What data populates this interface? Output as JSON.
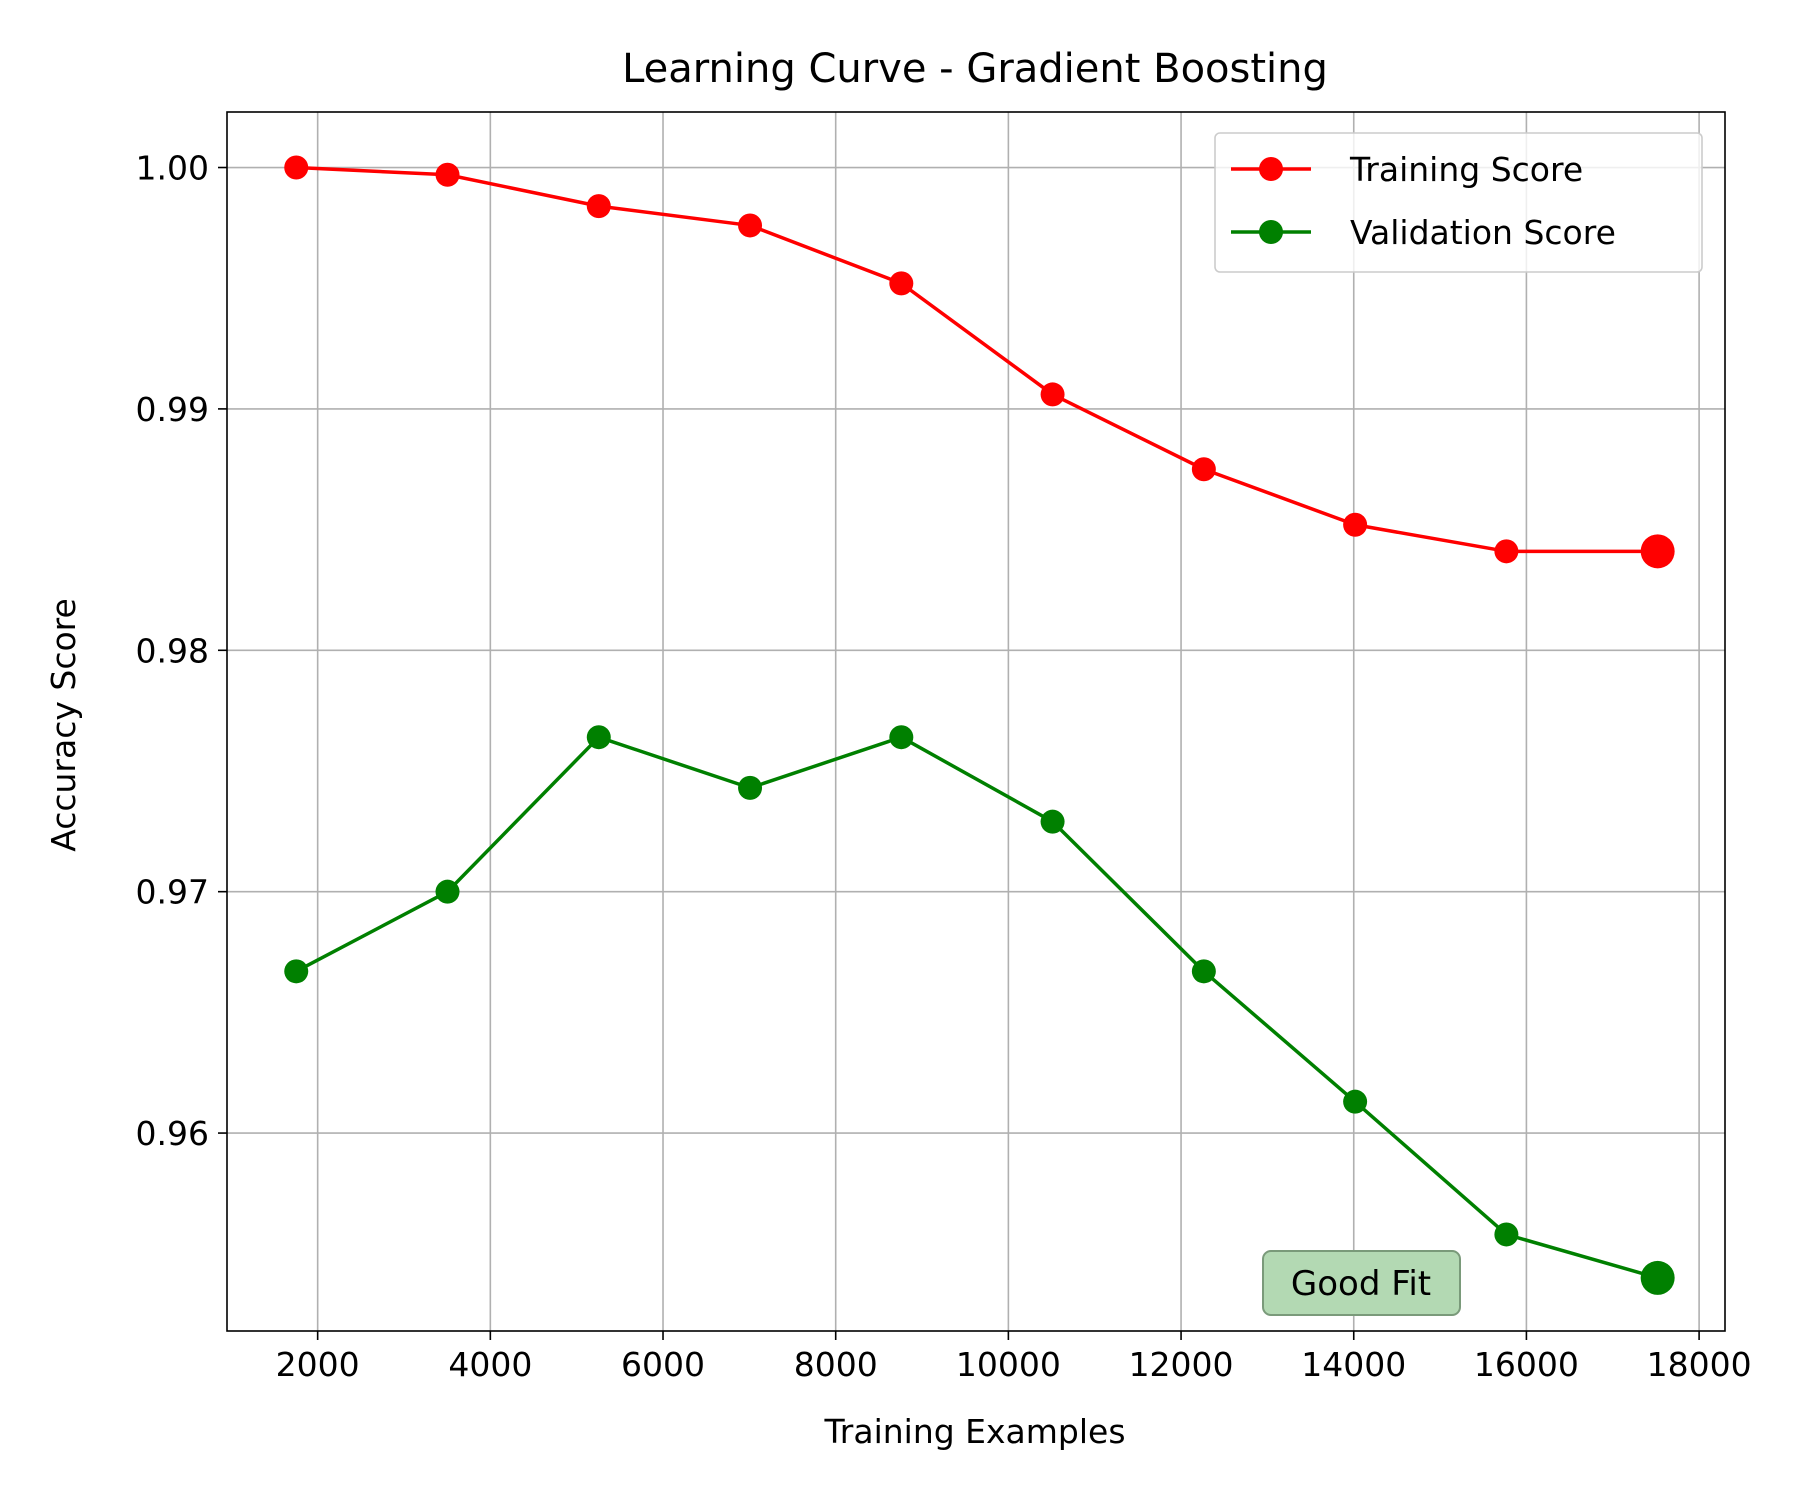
{
  "chart_data": {
    "type": "line",
    "title": "Learning Curve - Gradient Boosting",
    "xlabel": "Training Examples",
    "ylabel": "Accuracy Score",
    "xlim": [
      950,
      18300
    ],
    "ylim": [
      0.9518,
      1.0023
    ],
    "xticks": [
      2000,
      4000,
      6000,
      8000,
      10000,
      12000,
      14000,
      16000,
      18000
    ],
    "xtick_labels": [
      "2000",
      "4000",
      "6000",
      "8000",
      "10000",
      "12000",
      "14000",
      "16000",
      "18000"
    ],
    "yticks": [
      0.96,
      0.97,
      0.98,
      0.99,
      1.0
    ],
    "ytick_labels": [
      "0.96",
      "0.97",
      "0.98",
      "0.99",
      "1.00"
    ],
    "grid": true,
    "legend_position": "top-right",
    "x": [
      1752,
      3504,
      5256,
      7008,
      8760,
      10512,
      12264,
      14016,
      15768,
      17520
    ],
    "series": [
      {
        "name": "Training Score",
        "color": "#ff0000",
        "values": [
          1.0,
          0.9997,
          0.9984,
          0.9976,
          0.9952,
          0.9906,
          0.9875,
          0.9852,
          0.9841,
          0.9841
        ]
      },
      {
        "name": "Validation Score",
        "color": "#008000",
        "values": [
          0.9667,
          0.97,
          0.9764,
          0.9743,
          0.9764,
          0.9729,
          0.9667,
          0.9613,
          0.9558,
          0.954
        ]
      }
    ],
    "annotation": {
      "text": "Good Fit",
      "background": "#b3d9b3",
      "border": "#7a9a7a"
    }
  }
}
